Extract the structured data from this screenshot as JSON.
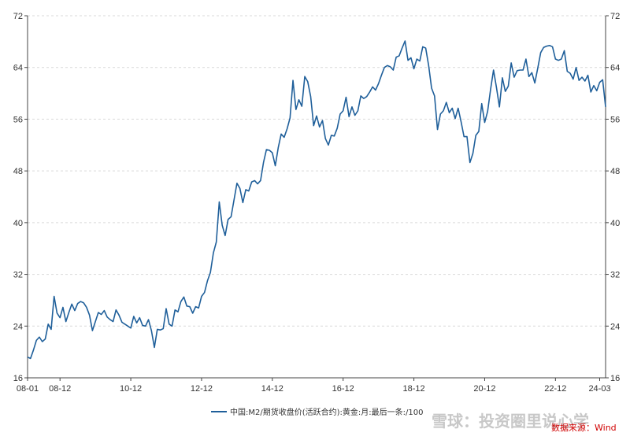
{
  "chart_data": {
    "type": "line",
    "title": "",
    "xlabel": "",
    "ylabel": "",
    "ylim": [
      16,
      72
    ],
    "y_ticks": [
      16,
      24,
      32,
      40,
      48,
      56,
      64,
      72
    ],
    "x_tick_labels": [
      "08-01",
      "08-12",
      "10-12",
      "12-12",
      "14-12",
      "16-12",
      "18-12",
      "20-12",
      "22-12",
      "24-03"
    ],
    "x_tick_months": [
      0,
      11,
      35,
      59,
      83,
      107,
      131,
      155,
      179,
      194
    ],
    "grid": true,
    "legend_position": "bottom",
    "series": [
      {
        "name": "中国:M2/期货收盘价(活跃合约):黄金:月:最后一条:/100",
        "color": "#1f5f9a",
        "x_start": "2008-01",
        "x_step": "month",
        "values": [
          19.2,
          19.0,
          20.3,
          21.8,
          22.3,
          21.6,
          22.0,
          24.3,
          23.5,
          28.6,
          26.0,
          25.3,
          26.9,
          24.7,
          26.1,
          27.4,
          26.4,
          27.5,
          27.8,
          27.6,
          26.9,
          25.7,
          23.3,
          24.7,
          26.1,
          25.8,
          26.4,
          25.4,
          25.0,
          24.7,
          26.5,
          25.7,
          24.6,
          24.3,
          24.0,
          23.7,
          25.5,
          24.5,
          25.3,
          24.1,
          24.0,
          25.0,
          23.3,
          20.7,
          23.5,
          23.4,
          23.6,
          26.7,
          24.3,
          24.0,
          26.5,
          26.2,
          27.8,
          28.5,
          27.1,
          27.0,
          26.0,
          27.0,
          26.8,
          28.6,
          29.2,
          31.0,
          32.3,
          35.3,
          37.0,
          43.2,
          39.6,
          38.0,
          40.5,
          40.9,
          43.5,
          46.1,
          45.3,
          43.1,
          45.1,
          44.9,
          46.3,
          46.5,
          46.0,
          46.5,
          49.3,
          51.3,
          51.2,
          50.8,
          48.8,
          51.6,
          53.7,
          53.2,
          54.5,
          56.2,
          62.0,
          57.5,
          59.0,
          58.0,
          62.6,
          61.8,
          59.5,
          55.0,
          56.5,
          54.8,
          55.8,
          53.0,
          52.0,
          53.5,
          53.4,
          54.6,
          56.8,
          57.3,
          59.4,
          56.4,
          57.9,
          56.6,
          57.3,
          59.6,
          59.2,
          59.5,
          60.2,
          61.0,
          60.5,
          61.5,
          62.8,
          64.0,
          64.3,
          64.1,
          63.6,
          65.6,
          65.8,
          67.0,
          68.1,
          65.1,
          65.5,
          63.8,
          65.3,
          65.0,
          67.2,
          67.0,
          64.3,
          60.8,
          59.6,
          54.4,
          56.8,
          57.3,
          58.6,
          57.0,
          57.7,
          56.1,
          57.7,
          55.6,
          53.3,
          53.3,
          49.3,
          50.7,
          53.5,
          54.1,
          58.4,
          55.5,
          57.2,
          60.6,
          63.6,
          60.9,
          57.9,
          62.4,
          60.3,
          61.1,
          64.7,
          62.5,
          63.5,
          63.6,
          63.6,
          65.3,
          62.6,
          63.2,
          61.6,
          63.9,
          66.3,
          67.1,
          67.3,
          67.4,
          67.2,
          65.3,
          65.1,
          65.3,
          66.6,
          63.4,
          63.1,
          62.2,
          64.0,
          62.0,
          62.5,
          61.9,
          62.8,
          60.2,
          61.2,
          60.4,
          61.7,
          62.1,
          57.9
        ]
      }
    ]
  },
  "source_text": "数据来源：Wind",
  "watermark_text": "雪球：投资圈里说心学"
}
